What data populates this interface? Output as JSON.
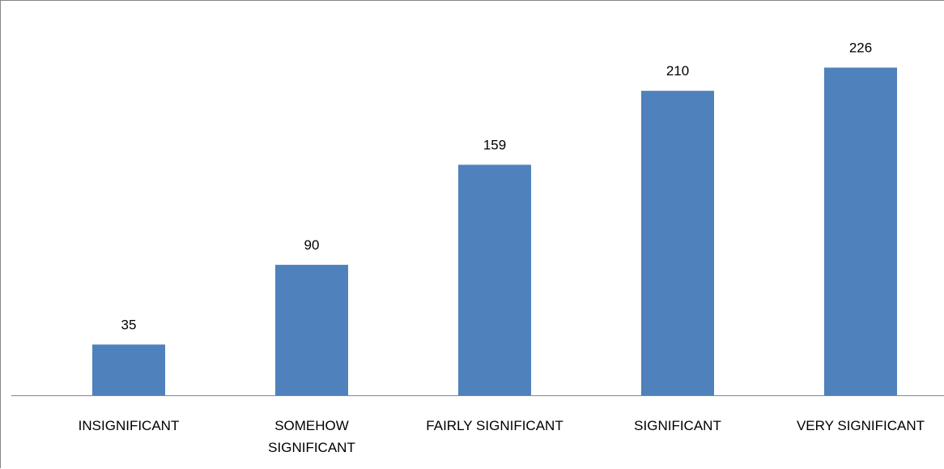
{
  "chart_data": {
    "type": "bar",
    "categories": [
      [
        "INSIGNIFICANT"
      ],
      [
        "SOMEHOW",
        "SIGNIFICANT"
      ],
      [
        "FAIRLY SIGNIFICANT"
      ],
      [
        "SIGNIFICANT"
      ],
      [
        "VERY SIGNIFICANT"
      ]
    ],
    "values": [
      35,
      90,
      159,
      210,
      226
    ],
    "data_labels": [
      "35",
      "90",
      "159",
      "210",
      "226"
    ],
    "title": "",
    "xlabel": "",
    "ylabel": "",
    "ylim": [
      0,
      250
    ],
    "grid": false,
    "legend": "none",
    "bar_color": "#4F81BD",
    "axis_color": "#868686"
  }
}
